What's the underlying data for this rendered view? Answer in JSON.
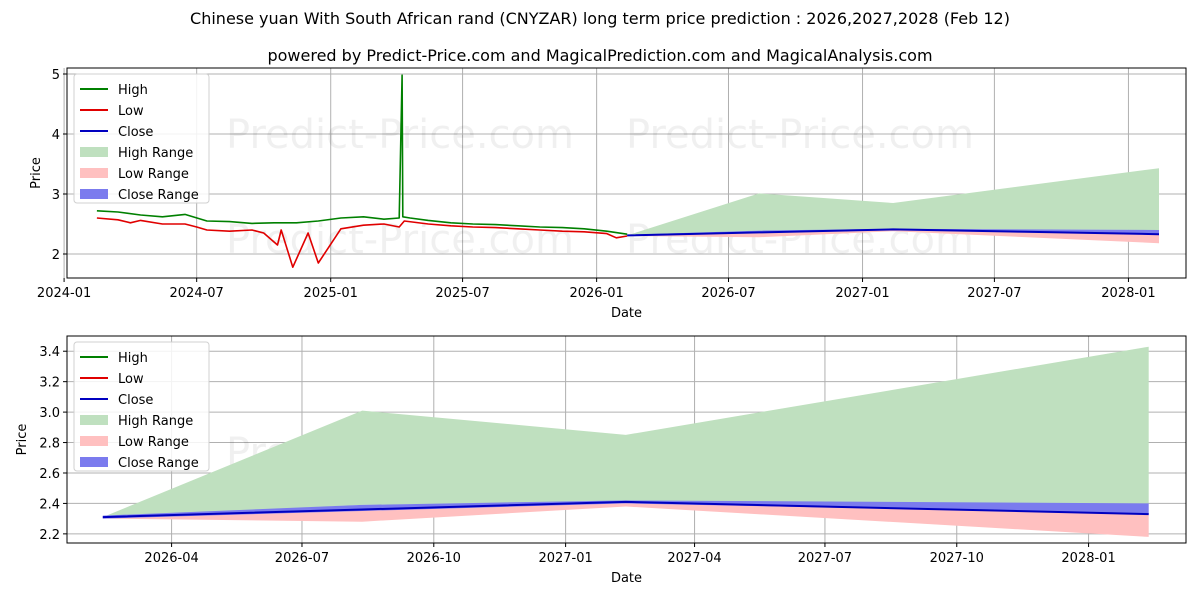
{
  "title": "Chinese yuan With South African rand (CNYZAR) long term price prediction : 2026,2027,2028 (Feb 12)",
  "subtitle": "powered by Predict-Price.com and MagicalPrediction.com and MagicalAnalysis.com",
  "watermark": "Predict-Price.com",
  "colors": {
    "high": "#008000",
    "low": "#e00000",
    "close": "#0000c0",
    "high_range": "#bfe0bf",
    "low_range": "#ffc0c0",
    "close_range": "#7b7bee",
    "grid": "#b0b0b0"
  },
  "chart_data": [
    {
      "type": "line",
      "title": "",
      "xlabel": "Date",
      "ylabel": "Price",
      "grid": true,
      "legend_position": "top-left",
      "xlim": [
        "2024-01-05",
        "2028-03-20"
      ],
      "ylim": [
        1.6,
        5.1
      ],
      "x_ticks": [
        "2024-01",
        "2024-07",
        "2025-01",
        "2025-07",
        "2026-01",
        "2026-07",
        "2027-01",
        "2027-07",
        "2028-01"
      ],
      "y_ticks": [
        "2",
        "3",
        "4",
        "5"
      ],
      "legend": [
        "High",
        "Low",
        "Close",
        "High Range",
        "Low Range",
        "Close Range"
      ],
      "series": [
        {
          "name": "High",
          "x": [
            "2024-02-15",
            "2024-03-15",
            "2024-04-15",
            "2024-05-15",
            "2024-06-15",
            "2024-07-15",
            "2024-08-15",
            "2024-09-15",
            "2024-10-15",
            "2024-11-15",
            "2024-12-15",
            "2025-01-15",
            "2025-02-15",
            "2025-03-15",
            "2025-04-05",
            "2025-04-09",
            "2025-04-10",
            "2025-04-20",
            "2025-05-15",
            "2025-06-15",
            "2025-07-15",
            "2025-08-15",
            "2025-09-15",
            "2025-10-15",
            "2025-11-15",
            "2025-12-15",
            "2026-01-15",
            "2026-02-12"
          ],
          "values": [
            2.72,
            2.7,
            2.65,
            2.62,
            2.66,
            2.55,
            2.54,
            2.51,
            2.52,
            2.52,
            2.55,
            2.6,
            2.62,
            2.58,
            2.6,
            4.98,
            2.62,
            2.6,
            2.56,
            2.52,
            2.5,
            2.49,
            2.47,
            2.45,
            2.44,
            2.42,
            2.38,
            2.33
          ]
        },
        {
          "name": "Low",
          "x": [
            "2024-02-15",
            "2024-03-15",
            "2024-04-01",
            "2024-04-15",
            "2024-05-15",
            "2024-06-15",
            "2024-07-01",
            "2024-07-15",
            "2024-08-15",
            "2024-09-15",
            "2024-10-01",
            "2024-10-20",
            "2024-10-25",
            "2024-11-10",
            "2024-12-01",
            "2024-12-15",
            "2025-01-15",
            "2025-02-15",
            "2025-03-15",
            "2025-04-05",
            "2025-04-12",
            "2025-05-15",
            "2025-06-15",
            "2025-07-15",
            "2025-08-15",
            "2025-09-15",
            "2025-10-15",
            "2025-11-15",
            "2025-12-15",
            "2026-01-15",
            "2026-01-28",
            "2026-02-12"
          ],
          "values": [
            2.6,
            2.57,
            2.52,
            2.56,
            2.5,
            2.5,
            2.45,
            2.4,
            2.38,
            2.4,
            2.35,
            2.15,
            2.4,
            1.78,
            2.35,
            1.85,
            2.42,
            2.48,
            2.5,
            2.45,
            2.55,
            2.5,
            2.47,
            2.45,
            2.44,
            2.42,
            2.4,
            2.38,
            2.37,
            2.34,
            2.27,
            2.3
          ]
        },
        {
          "name": "Close",
          "x": [
            "2026-02-12",
            "2026-08-12",
            "2027-02-12",
            "2027-08-12",
            "2028-02-12"
          ],
          "values": [
            2.31,
            2.36,
            2.41,
            2.37,
            2.33
          ]
        }
      ],
      "bands": [
        {
          "name": "High Range",
          "x": [
            "2026-02-12",
            "2026-08-12",
            "2027-02-12",
            "2028-02-12"
          ],
          "upper": [
            2.31,
            3.01,
            2.85,
            3.43
          ],
          "lower": [
            2.31,
            2.39,
            2.41,
            2.4
          ]
        },
        {
          "name": "Low Range",
          "x": [
            "2026-02-12",
            "2026-08-12",
            "2027-02-12",
            "2028-02-12"
          ],
          "upper": [
            2.31,
            2.36,
            2.41,
            2.33
          ],
          "lower": [
            2.3,
            2.28,
            2.38,
            2.18
          ]
        },
        {
          "name": "Close Range",
          "x": [
            "2026-02-12",
            "2026-08-12",
            "2027-02-12",
            "2028-02-12"
          ],
          "upper": [
            2.32,
            2.39,
            2.42,
            2.4
          ],
          "lower": [
            2.3,
            2.35,
            2.4,
            2.33
          ]
        }
      ]
    },
    {
      "type": "line",
      "title": "",
      "xlabel": "Date",
      "ylabel": "Price",
      "grid": true,
      "legend_position": "top-left",
      "xlim": [
        "2026-01-18",
        "2028-03-09"
      ],
      "ylim": [
        2.14,
        3.5
      ],
      "x_ticks": [
        "2026-04",
        "2026-07",
        "2026-10",
        "2027-01",
        "2027-04",
        "2027-07",
        "2027-10",
        "2028-01"
      ],
      "y_ticks": [
        "2.2",
        "2.4",
        "2.6",
        "2.8",
        "3.0",
        "3.2",
        "3.4"
      ],
      "legend": [
        "High",
        "Low",
        "Close",
        "High Range",
        "Low Range",
        "Close Range"
      ],
      "series": [
        {
          "name": "Close",
          "x": [
            "2026-02-12",
            "2026-08-12",
            "2027-02-12",
            "2027-08-12",
            "2028-02-12"
          ],
          "values": [
            2.31,
            2.36,
            2.41,
            2.37,
            2.33
          ]
        }
      ],
      "bands": [
        {
          "name": "High Range",
          "x": [
            "2026-02-12",
            "2026-08-12",
            "2027-02-12",
            "2028-02-12"
          ],
          "upper": [
            2.31,
            3.01,
            2.85,
            3.43
          ],
          "lower": [
            2.31,
            2.39,
            2.41,
            2.4
          ]
        },
        {
          "name": "Low Range",
          "x": [
            "2026-02-12",
            "2026-08-12",
            "2027-02-12",
            "2028-02-12"
          ],
          "upper": [
            2.31,
            2.36,
            2.41,
            2.33
          ],
          "lower": [
            2.3,
            2.28,
            2.38,
            2.18
          ]
        },
        {
          "name": "Close Range",
          "x": [
            "2026-02-12",
            "2026-08-12",
            "2027-02-12",
            "2028-02-12"
          ],
          "upper": [
            2.32,
            2.39,
            2.42,
            2.4
          ],
          "lower": [
            2.3,
            2.35,
            2.4,
            2.33
          ]
        }
      ]
    }
  ]
}
